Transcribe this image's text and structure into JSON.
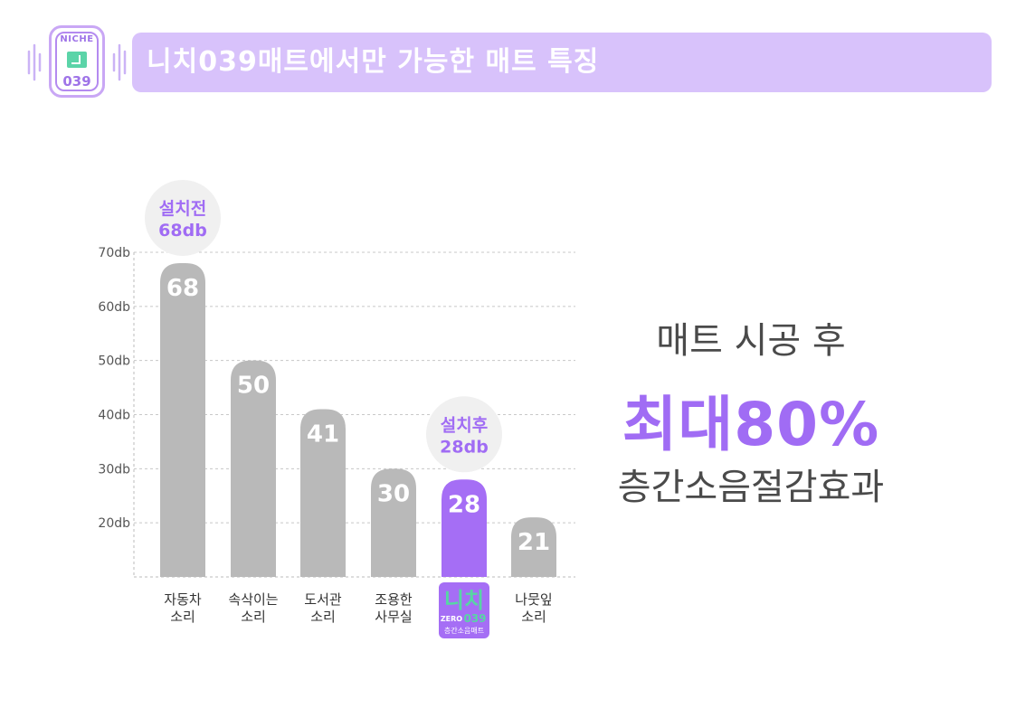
{
  "header": {
    "logo": {
      "top_text": "NICHE",
      "bottom_text": "039"
    },
    "title": "니치039매트에서만 가능한 매트 특징"
  },
  "chart_data": {
    "type": "bar",
    "categories": [
      [
        "자동차",
        "소리"
      ],
      [
        "속삭이는",
        "소리"
      ],
      [
        "도서관",
        "소리"
      ],
      [
        "조용한",
        "사무실"
      ],
      [
        "니치 ZERO 039 층간소음매트"
      ],
      [
        "나뭇잎",
        "소리"
      ]
    ],
    "values": [
      68,
      50,
      41,
      30,
      28,
      21
    ],
    "data_labels": [
      "68",
      "50",
      "41",
      "30",
      "28",
      "21"
    ],
    "highlight_index": 4,
    "ylim": [
      10,
      70
    ],
    "yticks": [
      20,
      30,
      40,
      50,
      60,
      70
    ],
    "ytick_labels": [
      "20db",
      "30db",
      "40db",
      "50db",
      "60db",
      "70db"
    ],
    "grid": true,
    "annotations": [
      {
        "bar_index": 0,
        "line1": "설치전",
        "line2": "68db"
      },
      {
        "bar_index": 4,
        "line1": "설치후",
        "line2": "28db"
      }
    ],
    "highlight_logo": {
      "main": "니치",
      "sub_left": "ZERO",
      "sub_right": "039",
      "caption": "층간소음매트"
    },
    "colors": {
      "bar": "#b9b9b9",
      "highlight": "#a56ef5",
      "annotation_bg": "#f0f0f0",
      "annotation_text": "#a06cf4",
      "logo_main": "#57d6a4",
      "logo_bg": "#a56ef5"
    }
  },
  "summary": {
    "line1": "매트 시공 후",
    "line2": "최대80%",
    "line3": "층간소음절감효과"
  }
}
